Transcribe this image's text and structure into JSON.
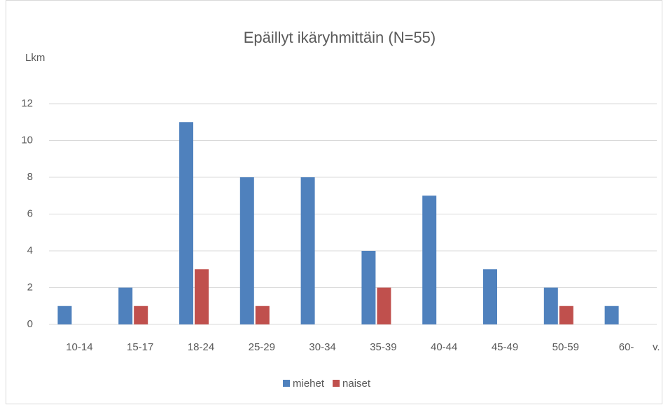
{
  "chart_data": {
    "type": "bar",
    "title": "Epäillyt ikäryhmittäin (N=55)",
    "y_label": "Lkm",
    "x_label": "v.",
    "categories": [
      "10-14",
      "15-17",
      "18-24",
      "25-29",
      "30-34",
      "35-39",
      "40-44",
      "45-49",
      "50-59",
      "60-"
    ],
    "series": [
      {
        "name": "miehet",
        "color": "#4f81bd",
        "values": [
          1,
          2,
          11,
          8,
          8,
          4,
          7,
          3,
          2,
          1
        ]
      },
      {
        "name": "naiset",
        "color": "#c0504d",
        "values": [
          0,
          1,
          3,
          1,
          0,
          2,
          0,
          0,
          1,
          0
        ]
      }
    ],
    "ylim": [
      0,
      12
    ],
    "yticks": [
      0,
      2,
      4,
      6,
      8,
      10,
      12
    ],
    "grid": true,
    "legend": "bottom"
  }
}
